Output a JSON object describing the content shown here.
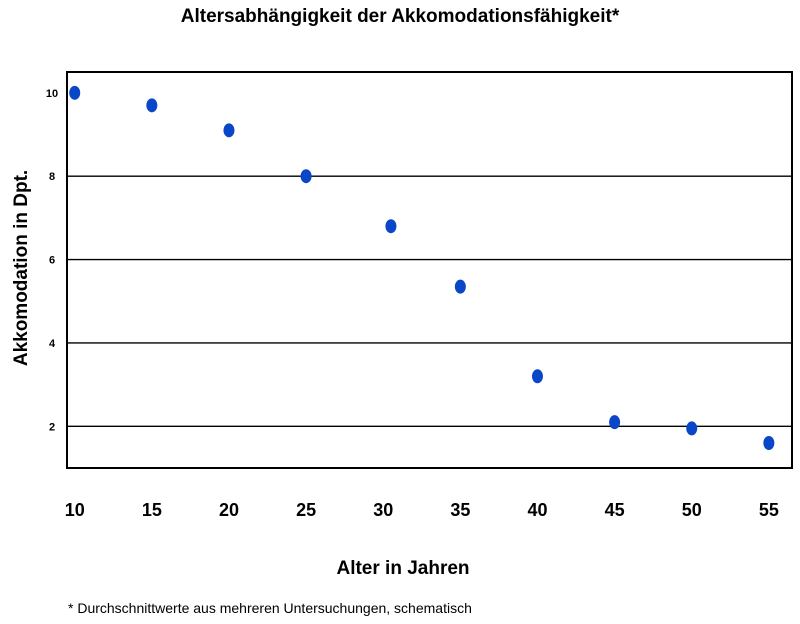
{
  "chart_data": {
    "type": "scatter",
    "title": "Altersabhängigkeit der Akkomodationsfähigkeit*",
    "xlabel": "Alter in Jahren",
    "ylabel": "Akkomodation in Dpt.",
    "footnote": "* Durchschnittwerte aus mehreren Untersuchungen, schematisch",
    "x_ticks": [
      10,
      15,
      20,
      25,
      30,
      35,
      40,
      45,
      50,
      55
    ],
    "y_ticks": [
      2,
      4,
      6,
      8,
      10
    ],
    "xlim": [
      9.5,
      56.5
    ],
    "ylim": [
      1,
      10.5
    ],
    "grid": {
      "horizontal": [
        2,
        4,
        6,
        8
      ]
    },
    "point_color": "#0a46c8",
    "series": [
      {
        "x": [
          10,
          15,
          20,
          25,
          30.5,
          35,
          40,
          45,
          50,
          55
        ],
        "y": [
          10,
          9.7,
          9.1,
          8.0,
          6.8,
          5.35,
          3.2,
          2.1,
          1.95,
          1.6
        ]
      }
    ]
  }
}
